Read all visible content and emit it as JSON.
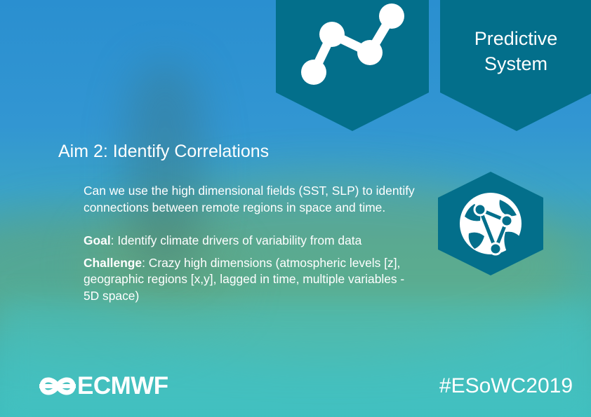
{
  "header": {
    "predictive_label_line1": "Predictive",
    "predictive_label_line2": "System"
  },
  "aim": {
    "title": "Aim 2: Identify Correlations",
    "intro": "Can we use the high dimensional fields (SST, SLP) to identify connections between remote regions in space and time.",
    "goal_label": "Goal",
    "goal_text": ": Identify climate drivers of variability from data",
    "challenge_label": "Challenge",
    "challenge_text": ": Crazy high dimensions (atmospheric levels [z], geographic regions [x,y], lagged in time, multiple variables - 5D space)"
  },
  "footer": {
    "logo_text": "ECMWF",
    "hashtag": "#ESoWC2019"
  },
  "icons": {
    "top_left_hex": "line-graph-icon",
    "right_hex": "globe-network-icon",
    "logo": "ecmwf-logo-icon"
  },
  "colors": {
    "hex_fill": "#036f8b",
    "text": "#ffffff"
  }
}
